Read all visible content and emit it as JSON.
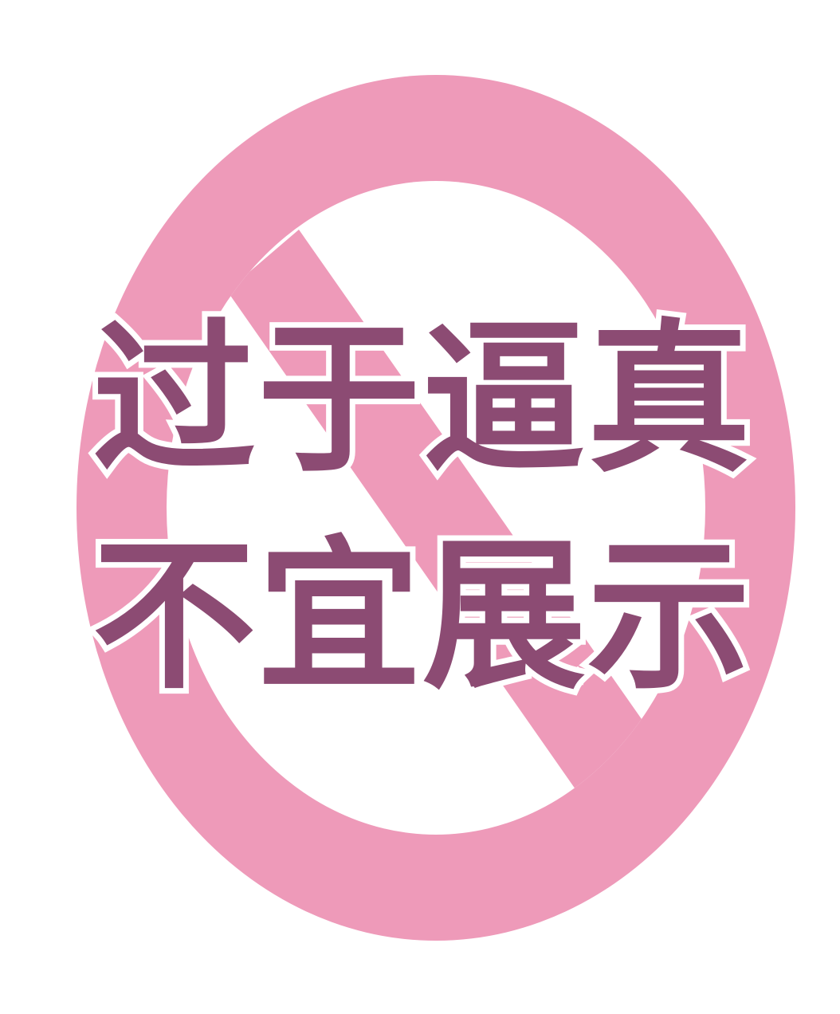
{
  "sign": {
    "icon": "prohibition-icon",
    "ring_color": "#ee9ab9",
    "inner_color": "#ffffff",
    "text_color": "#8c4b73",
    "text_outline_color": "#ffffff"
  },
  "message": {
    "line1": "过于逼真",
    "line2": "不宜展示"
  }
}
